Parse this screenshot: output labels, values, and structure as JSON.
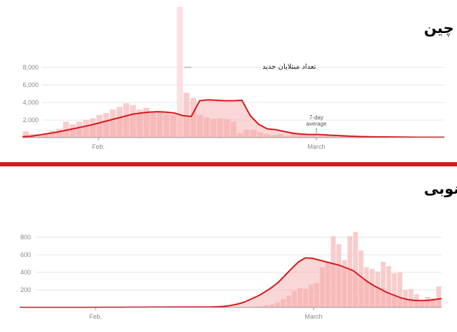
{
  "colors": {
    "bar": "#f8c3c3",
    "bar_highlight": "#fbd9d9",
    "line": "#d7191c",
    "area": "#f5a3a3",
    "divider": "#d7191c",
    "grid": "#e5e5e5"
  },
  "chart_data": [
    {
      "type": "bar",
      "title": "چین",
      "annotation": "تعداد مبتلایان جدید",
      "average_label_line1": "7-day",
      "average_label_line2": "average",
      "x_tick_labels": [
        "Feb.",
        "March"
      ],
      "y_ticks": [
        2000,
        4000,
        6000,
        8000
      ],
      "y_tick_labels": [
        "2,000",
        "4,000",
        "6,000",
        "8,000"
      ],
      "ylim": [
        0,
        15000
      ],
      "bar_values": [
        700,
        400,
        400,
        500,
        800,
        1000,
        1800,
        1500,
        1800,
        2000,
        2200,
        2600,
        2800,
        3200,
        3500,
        3900,
        3700,
        3200,
        3400,
        3000,
        2900,
        2700,
        2600,
        14900,
        5100,
        4500,
        2600,
        2300,
        2100,
        2200,
        2100,
        1800,
        500,
        900,
        900,
        600,
        400,
        300,
        400,
        200,
        500,
        400,
        400,
        300,
        200,
        300,
        250,
        150,
        120,
        100,
        100,
        80,
        60,
        50,
        40,
        40,
        40,
        50,
        40,
        30,
        30,
        40,
        40
      ],
      "average_values": [
        100,
        150,
        300,
        450,
        600,
        800,
        1000,
        1200,
        1400,
        1650,
        1900,
        2150,
        2400,
        2650,
        2800,
        2900,
        2950,
        2900,
        2800,
        2500,
        2400,
        4200,
        4300,
        4250,
        4200,
        4200,
        4250,
        2500,
        1500,
        1000,
        900,
        700,
        500,
        400,
        350,
        350,
        300,
        250,
        200,
        150,
        120,
        100,
        80,
        80,
        70,
        60,
        50,
        40,
        40,
        40,
        40
      ]
    },
    {
      "type": "bar",
      "title": "کره‌جنوبی",
      "x_tick_labels": [
        "Feb.",
        "March"
      ],
      "y_ticks": [
        200,
        400,
        600,
        800
      ],
      "y_tick_labels": [
        "200",
        "400",
        "600",
        "800"
      ],
      "ylim": [
        0,
        850
      ],
      "bar_values": [
        1,
        1,
        1,
        0,
        1,
        1,
        1,
        1,
        1,
        1,
        2,
        1,
        1,
        1,
        1,
        1,
        3,
        2,
        1,
        1,
        3,
        5,
        3,
        4,
        2,
        6,
        5,
        6,
        4,
        6,
        6,
        4,
        7,
        5,
        5,
        5,
        5,
        5,
        3,
        6,
        5,
        5,
        10,
        15,
        25,
        35,
        55,
        95,
        135,
        185,
        220,
        210,
        260,
        280,
        460,
        510,
        810,
        720,
        540,
        810,
        860,
        650,
        460,
        440,
        410,
        520,
        470,
        390,
        400,
        200,
        210,
        150,
        80,
        120,
        100,
        240
      ],
      "average_values": [
        1,
        1,
        1,
        1,
        1,
        1,
        1,
        1,
        1,
        1,
        1,
        1,
        2,
        2,
        2,
        2,
        3,
        3,
        3,
        4,
        4,
        4,
        5,
        5,
        5,
        5,
        5,
        5,
        5,
        8,
        12,
        22,
        38,
        60,
        95,
        130,
        175,
        225,
        285,
        365,
        445,
        520,
        565,
        560,
        540,
        520,
        500,
        480,
        450,
        420,
        360,
        300,
        250,
        210,
        170,
        140,
        110,
        90,
        80,
        78,
        80,
        90,
        100
      ]
    }
  ]
}
